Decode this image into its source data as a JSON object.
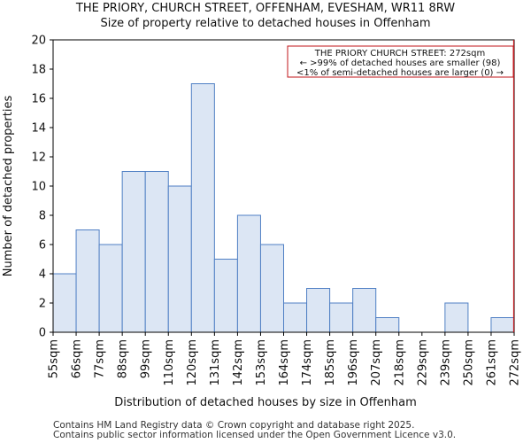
{
  "chart_data": {
    "type": "bar",
    "title": "THE PRIORY, CHURCH STREET, OFFENHAM, EVESHAM, WR11 8RW",
    "subtitle": "Size of property relative to detached houses in Offenham",
    "xlabel": "Distribution of detached houses by size in Offenham",
    "ylabel": "Number of detached properties",
    "bin_edges": [
      "55sqm",
      "66sqm",
      "77sqm",
      "88sqm",
      "99sqm",
      "110sqm",
      "120sqm",
      "131sqm",
      "142sqm",
      "153sqm",
      "164sqm",
      "174sqm",
      "185sqm",
      "196sqm",
      "207sqm",
      "218sqm",
      "229sqm",
      "239sqm",
      "250sqm",
      "261sqm",
      "272sqm"
    ],
    "values": [
      4,
      7,
      6,
      11,
      11,
      10,
      17,
      5,
      8,
      6,
      2,
      3,
      2,
      3,
      1,
      0,
      0,
      2,
      0,
      1
    ],
    "ylim": [
      0,
      20
    ],
    "yticks": [
      0,
      2,
      4,
      6,
      8,
      10,
      12,
      14,
      16,
      18,
      20
    ],
    "grid": false,
    "bar_fill": "#dce6f4",
    "bar_edge": "#4f7fc4",
    "marker": {
      "x_label": "272sqm",
      "color": "#c0141a",
      "annotation": [
        "THE PRIORY CHURCH STREET: 272sqm",
        "← >99% of detached houses are smaller (98)",
        "<1% of semi-detached houses are larger (0) →"
      ]
    }
  },
  "footer": [
    "Contains HM Land Registry data © Crown copyright and database right 2025.",
    "Contains public sector information licensed under the Open Government Licence v3.0."
  ]
}
